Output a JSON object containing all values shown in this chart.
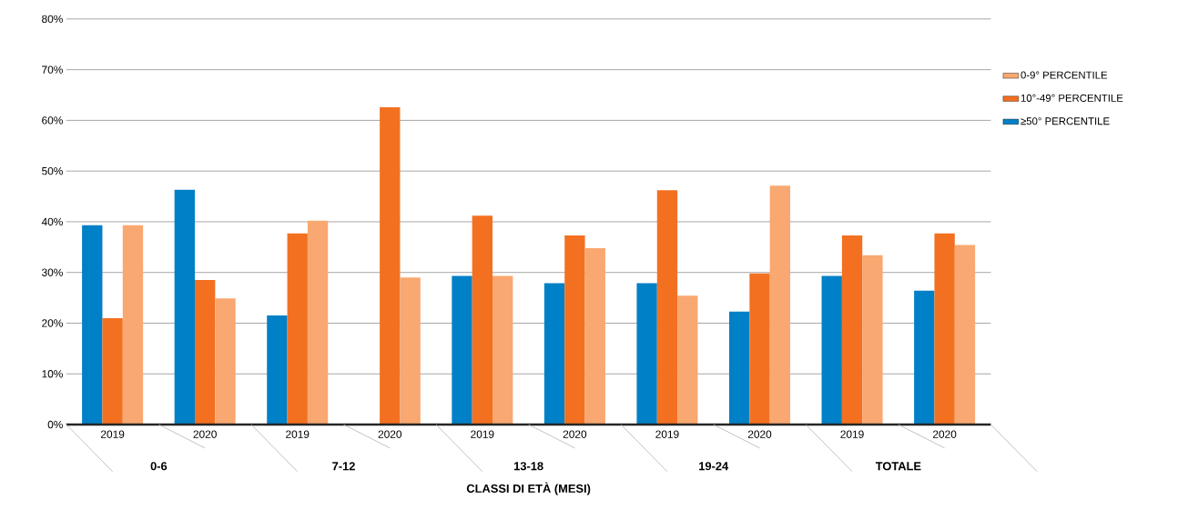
{
  "chart_data": {
    "type": "bar",
    "xlabel": "CLASSI DI ETÀ (MESI)",
    "categories": [
      "2019",
      "2020",
      "2019",
      "2020",
      "2019",
      "2020",
      "2019",
      "2020",
      "2019",
      "2020"
    ],
    "annotations": [
      "0-6",
      "7-12",
      "13-18",
      "19-24",
      "TOTALE"
    ],
    "series": [
      {
        "name": "≥50° PERCENTILE",
        "color": "#0080c6",
        "values": [
          39.3,
          46.3,
          21.5,
          null,
          29.3,
          27.9,
          27.9,
          22.3,
          29.3,
          26.4
        ]
      },
      {
        "name": "10°-49° PERCENTILE",
        "color": "#f37021",
        "values": [
          21.0,
          28.5,
          37.7,
          62.6,
          41.2,
          37.3,
          46.2,
          29.8,
          37.3,
          37.7
        ]
      },
      {
        "name": "0-9° PERCENTILE",
        "color": "#f8a870",
        "values": [
          39.3,
          24.9,
          40.2,
          29.0,
          29.3,
          34.8,
          25.4,
          47.1,
          33.4,
          35.4
        ]
      }
    ],
    "ylim": [
      0,
      80
    ],
    "yticks": [
      {
        "value": 0,
        "label": "0%"
      },
      {
        "value": 10,
        "label": "10%"
      },
      {
        "value": 20,
        "label": "20%"
      },
      {
        "value": 30,
        "label": "30%"
      },
      {
        "value": 40,
        "label": "40%"
      },
      {
        "value": 50,
        "label": "50%"
      },
      {
        "value": 60,
        "label": "60%"
      },
      {
        "value": 70,
        "label": "70%"
      },
      {
        "value": 80,
        "label": "80%"
      }
    ],
    "grid": "y",
    "legend": "right"
  }
}
